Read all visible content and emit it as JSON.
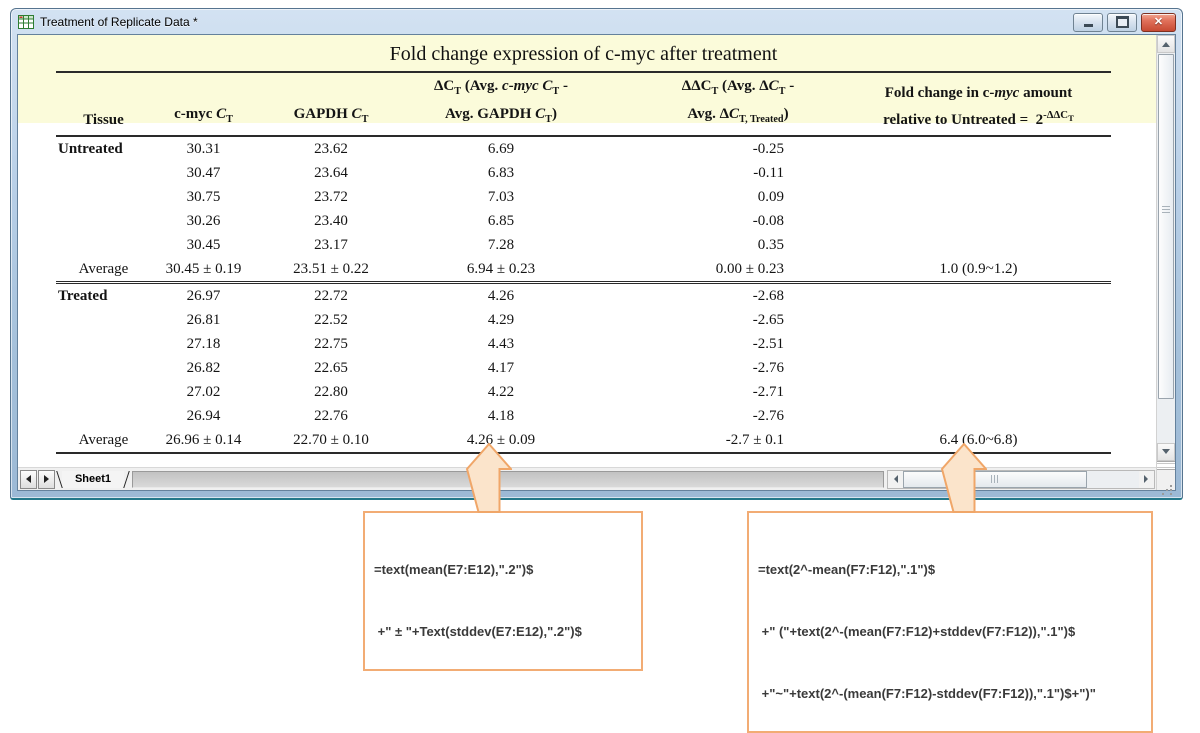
{
  "window": {
    "title": "Treatment of Replicate Data *",
    "icon": "worksheet-grid-icon",
    "controls": [
      "minimize",
      "maximize",
      "close"
    ]
  },
  "worksheet": {
    "title": "Fold change expression of c-myc after treatment",
    "columns": [
      {
        "id": "tissue",
        "label": "Tissue"
      },
      {
        "id": "cmyc_ct",
        "label_html": "c-myc <i>C</i><sub>T</sub>"
      },
      {
        "id": "gapdh_ct",
        "label_html": "GAPDH <i>C</i><sub>T</sub>"
      },
      {
        "id": "dct",
        "line1": "ΔC<sub>T</sub> (Avg. <i>c-myc C</i><sub>T</sub> -",
        "line2": "Avg. GAPDH <i>C</i><sub>T</sub>)"
      },
      {
        "id": "ddct",
        "line1": "ΔΔC<sub>T</sub> (Avg. Δ<i>C</i><sub>T</sub> -",
        "line2": "Avg. Δ<i>C</i><sub>T, Treated</sub>)"
      },
      {
        "id": "fold",
        "line1": "Fold change in c-<i>myc</i> amount",
        "line2": "relative to Untreated =  2<sup>-ΔΔC<sub>T</sub></sup>"
      }
    ],
    "sections": [
      {
        "tissue": "Untreated",
        "rows": [
          [
            "30.31",
            "23.62",
            "6.69",
            "-0.25"
          ],
          [
            "30.47",
            "23.64",
            "6.83",
            "-0.11"
          ],
          [
            "30.75",
            "23.72",
            "7.03",
            "0.09"
          ],
          [
            "30.26",
            "23.40",
            "6.85",
            "-0.08"
          ],
          [
            "30.45",
            "23.17",
            "7.28",
            "0.35"
          ]
        ],
        "average": {
          "label": "Average",
          "cmyc": "30.45 ± 0.19",
          "gapdh": "23.51 ± 0.22",
          "dct": "6.94 ± 0.23",
          "ddct": "0.00 ± 0.23",
          "fold": "1.0 (0.9~1.2)"
        }
      },
      {
        "tissue": "Treated",
        "rows": [
          [
            "26.97",
            "22.72",
            "4.26",
            "-2.68"
          ],
          [
            "26.81",
            "22.52",
            "4.29",
            "-2.65"
          ],
          [
            "27.18",
            "22.75",
            "4.43",
            "-2.51"
          ],
          [
            "26.82",
            "22.65",
            "4.17",
            "-2.76"
          ],
          [
            "27.02",
            "22.80",
            "4.22",
            "-2.71"
          ],
          [
            "26.94",
            "22.76",
            "4.18",
            "-2.76"
          ]
        ],
        "average": {
          "label": "Average",
          "cmyc": "26.96 ± 0.14",
          "gapdh": "22.70 ± 0.10",
          "dct": "4.26 ± 0.09",
          "ddct": "-2.7 ± 0.1",
          "fold": "6.4 (6.0~6.8)"
        }
      }
    ]
  },
  "tab_bar": {
    "sheet_tab": "Sheet1",
    "prev_icon": "left-arrow-icon",
    "next_icon": "right-arrow-icon"
  },
  "callouts": {
    "left": {
      "lines": [
        "=text(mean(E7:E12),\".2\")$",
        " +\" ± \"+Text(stddev(E7:E12),\".2\")$"
      ]
    },
    "right": {
      "lines": [
        "=text(2^-mean(F7:F12),\".1\")$",
        " +\" (\"+text(2^-(mean(F7:F12)+stddev(F7:F12)),\".1\")$",
        " +\"~\"+text(2^-(mean(F7:F12)-stddev(F7:F12)),\".1\")$+\")\""
      ]
    }
  },
  "colors": {
    "header_band": "#fbfbda",
    "titlebar_blue": "#b9d0e8",
    "callout_border": "#f2ac74",
    "arrow_fill": "#fbe4cb",
    "close_button_red": "#c74a33"
  }
}
